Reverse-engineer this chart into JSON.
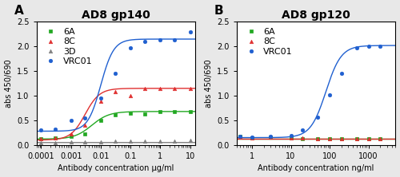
{
  "panel_A": {
    "title": "AD8 gp140",
    "xlabel": "Antibody concentration μg/ml",
    "ylabel": "abs 450/690",
    "ylim": [
      0,
      2.5
    ],
    "yticks": [
      0.0,
      0.5,
      1.0,
      1.5,
      2.0,
      2.5
    ],
    "xlim": [
      7e-05,
      15
    ],
    "series": [
      {
        "label": "6A",
        "color": "#22a822",
        "marker": "s",
        "x": [
          0.0001,
          0.0003,
          0.001,
          0.003,
          0.01,
          0.03,
          0.1,
          0.3,
          1.0,
          3.0,
          10.0
        ],
        "y": [
          0.13,
          0.15,
          0.18,
          0.22,
          0.5,
          0.62,
          0.65,
          0.63,
          0.67,
          0.68,
          0.67
        ],
        "ec50": 0.005,
        "top": 0.68,
        "bottom": 0.12,
        "hillslope": 1.5
      },
      {
        "label": "8C",
        "color": "#e03030",
        "marker": "^",
        "x": [
          0.0001,
          0.0003,
          0.001,
          0.003,
          0.01,
          0.03,
          0.1,
          0.3,
          1.0,
          3.0,
          10.0
        ],
        "y": [
          0.12,
          0.15,
          0.22,
          0.4,
          0.88,
          1.08,
          1.0,
          1.15,
          1.15,
          1.15,
          1.15
        ],
        "ec50": 0.003,
        "top": 1.15,
        "bottom": 0.1,
        "hillslope": 1.8
      },
      {
        "label": "3D",
        "color": "#808080",
        "marker": "^",
        "x": [
          0.0001,
          0.0003,
          0.001,
          0.003,
          0.01,
          0.03,
          0.1,
          0.3,
          1.0,
          3.0,
          10.0
        ],
        "y": [
          0.05,
          0.05,
          0.06,
          0.07,
          0.07,
          0.08,
          0.08,
          0.08,
          0.08,
          0.08,
          0.1
        ],
        "ec50": 1000.0,
        "top": 0.1,
        "bottom": 0.05,
        "hillslope": 1.0
      },
      {
        "label": "VRC01",
        "color": "#2060d0",
        "marker": "o",
        "x": [
          0.0001,
          0.0003,
          0.001,
          0.003,
          0.01,
          0.03,
          0.1,
          0.3,
          1.0,
          3.0,
          10.0
        ],
        "y": [
          0.3,
          0.32,
          0.5,
          0.54,
          0.95,
          1.45,
          1.97,
          2.1,
          2.14,
          2.14,
          2.3
        ],
        "ec50": 0.01,
        "top": 2.15,
        "bottom": 0.28,
        "hillslope": 2.0
      }
    ]
  },
  "panel_B": {
    "title": "AD8 gp120",
    "xlabel": "Antibody concentration ng/ml",
    "ylabel": "abs 450/690",
    "ylim": [
      0,
      2.5
    ],
    "yticks": [
      0.0,
      0.5,
      1.0,
      1.5,
      2.0,
      2.5
    ],
    "xlim": [
      0.4,
      5000
    ],
    "series": [
      {
        "label": "6A",
        "color": "#22a822",
        "marker": "s",
        "x": [
          0.5,
          1.0,
          3.0,
          10.0,
          20.0,
          50.0,
          100.0,
          200.0,
          500.0,
          1000.0,
          2000.0
        ],
        "y": [
          0.17,
          0.15,
          0.16,
          0.14,
          0.13,
          0.13,
          0.13,
          0.13,
          0.13,
          0.12,
          0.13
        ],
        "ec50": 100000000.0,
        "top": 0.13,
        "bottom": 0.13,
        "hillslope": 1.0
      },
      {
        "label": "8C",
        "color": "#e03030",
        "marker": "^",
        "x": [
          0.5,
          1.0,
          3.0,
          10.0,
          20.0,
          50.0,
          100.0,
          200.0,
          500.0,
          1000.0,
          2000.0
        ],
        "y": [
          0.17,
          0.15,
          0.16,
          0.14,
          0.14,
          0.13,
          0.13,
          0.13,
          0.13,
          0.13,
          0.13
        ],
        "ec50": 100000000.0,
        "top": 0.13,
        "bottom": 0.13,
        "hillslope": 1.0
      },
      {
        "label": "VRC01",
        "color": "#2060d0",
        "marker": "o",
        "x": [
          0.5,
          1.0,
          3.0,
          10.0,
          20.0,
          50.0,
          100.0,
          200.0,
          500.0,
          1000.0,
          2000.0
        ],
        "y": [
          0.17,
          0.16,
          0.18,
          0.2,
          0.3,
          0.56,
          1.01,
          1.46,
          1.97,
          2.01,
          2.01
        ],
        "ec50": 80.0,
        "top": 2.02,
        "bottom": 0.15,
        "hillslope": 2.2
      }
    ]
  },
  "fig_bg_color": "#e8e8e8",
  "plot_bg_color": "#ffffff",
  "panel_label_fontsize": 11,
  "title_fontsize": 10,
  "axis_fontsize": 7,
  "tick_fontsize": 7,
  "legend_fontsize": 8
}
